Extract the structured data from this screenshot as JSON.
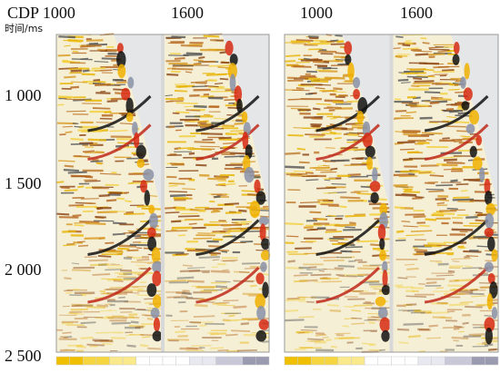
{
  "header": {
    "left_cdp_labels": [
      "CDP 1000",
      "1600"
    ],
    "right_cdp_labels": [
      "1000",
      "1600"
    ]
  },
  "y_axis": {
    "title": "时间/ms",
    "tick_labels": [
      "1 000",
      "1 500",
      "2 000",
      "2 500"
    ]
  }
}
